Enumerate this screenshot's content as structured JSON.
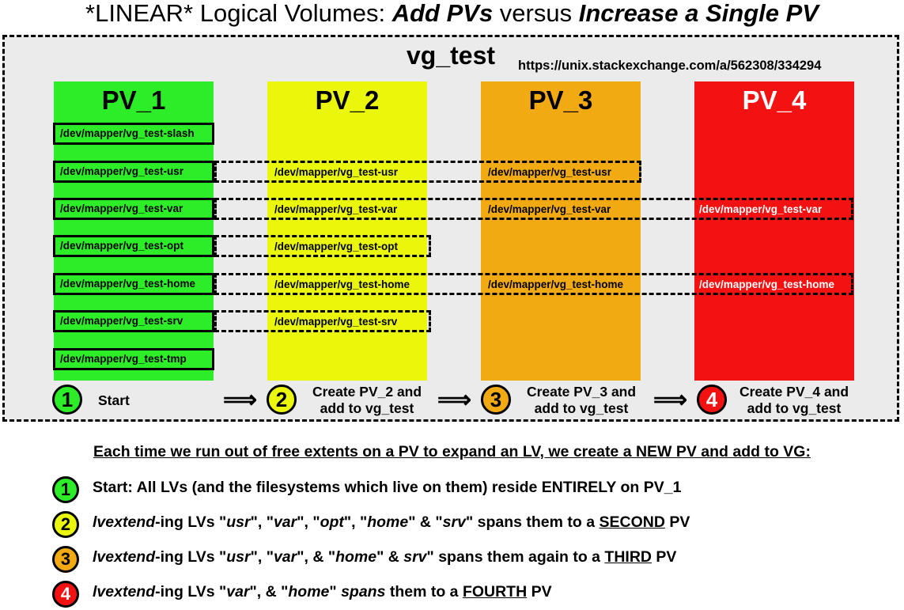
{
  "title": {
    "part1": "*LINEAR* Logical Volumes: ",
    "part2": "Add PVs",
    "part3": " versus ",
    "part4": "Increase a Single PV"
  },
  "vg": {
    "name": "vg_test",
    "url": "https://unix.stackexchange.com/a/562308/334294"
  },
  "colors": {
    "pv1": "#2ded28",
    "pv2": "#eaf60a",
    "pv3": "#f2aa12",
    "pv4": "#f41111"
  },
  "pvs": [
    "PV_1",
    "PV_2",
    "PV_3",
    "PV_4"
  ],
  "lvs": {
    "slash": "/dev/mapper/vg_test-slash",
    "usr": "/dev/mapper/vg_test-usr",
    "var": "/dev/mapper/vg_test-var",
    "opt": "/dev/mapper/vg_test-opt",
    "home": "/dev/mapper/vg_test-home",
    "srv": "/dev/mapper/vg_test-srv",
    "tmp": "/dev/mapper/vg_test-tmp"
  },
  "steps": [
    {
      "num": "1",
      "line1": "Start",
      "line2": ""
    },
    {
      "num": "2",
      "line1": "Create PV_2 and",
      "line2": "add to vg_test"
    },
    {
      "num": "3",
      "line1": "Create PV_3 and",
      "line2": "add to vg_test"
    },
    {
      "num": "4",
      "line1": "Create PV_4 and",
      "line2": "add to vg_test"
    }
  ],
  "arrow": "⟹",
  "heading": "Each time we run out of free extents on a PV to expand an LV, we create a NEW PV and add to VG:",
  "notes": {
    "n1": "Start:  All LVs (and the filesystems which live on them) reside ENTIRELY on PV_1",
    "n2": {
      "cmd": "lvextend",
      "a": "-ing LVs \"",
      "usr": "usr",
      "b": "\", \"",
      "var": "var",
      "c": "\", \"",
      "opt": "opt",
      "d": "\", \"",
      "home": "home",
      "e": "\" & \"",
      "srv": "srv",
      "f": "\" spans them to a ",
      "ord": "SECOND",
      "g": " PV"
    },
    "n3": {
      "cmd": "lvextend",
      "a": "-ing LVs \"",
      "usr": "usr",
      "b": "\", \"",
      "var": "var",
      "c": "\", & \"",
      "home": "home",
      "d": "\" & ",
      "srv": "srv",
      "e": "\" spans them again to a ",
      "ord": "THIRD",
      "f": " PV"
    },
    "n4": {
      "cmd": "lvextend",
      "a": "-ing LVs \"",
      "var": "var",
      "b": "\", & \"",
      "home": "home",
      "c": "\" ",
      "spans": "spans",
      "d": " them to a ",
      "ord": "FOURTH",
      "e": " PV"
    }
  }
}
